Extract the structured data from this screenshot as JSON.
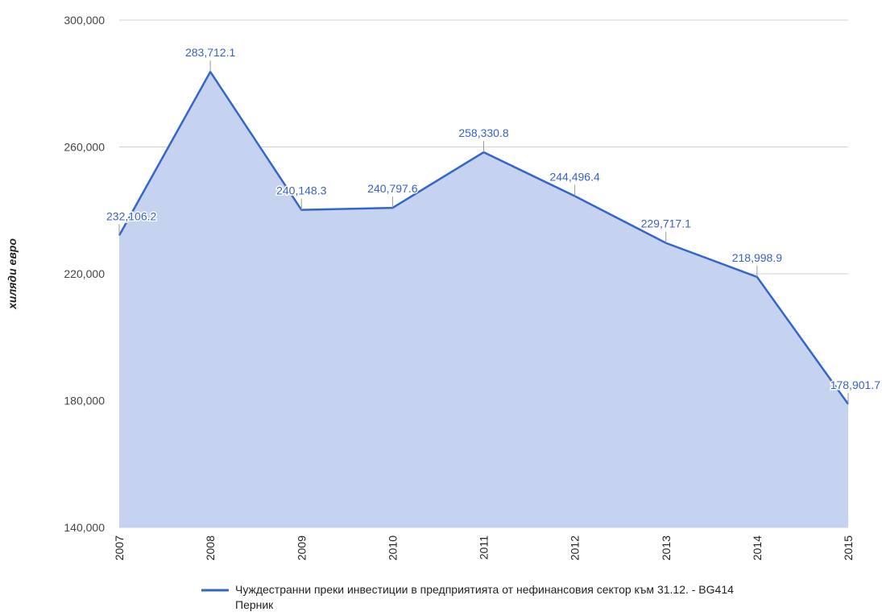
{
  "chart_data": {
    "type": "area",
    "y_axis_label": "хиляди евро",
    "categories": [
      "2007",
      "2008",
      "2009",
      "2010",
      "2011",
      "2012",
      "2013",
      "2014",
      "2015"
    ],
    "series": [
      {
        "name": "Чуждестранни преки инвестиции в предприятията от нефинансовия сектор към 31.12. - BG414 Перник",
        "color": "#3366cc",
        "fill": "#c3d1ef",
        "values": [
          232106.2,
          283712.1,
          240148.3,
          240797.6,
          258330.8,
          244496.4,
          229717.1,
          218998.9,
          178901.7
        ],
        "value_labels": [
          "232,106.2",
          "283,712.1",
          "240,148.3",
          "240,797.6",
          "258,330.8",
          "244,496.4",
          "229,717.1",
          "218,998.9",
          "178,901.7"
        ]
      }
    ],
    "ylim": [
      140000,
      300000
    ],
    "yticks": [
      {
        "value": 140000,
        "label": "140,000"
      },
      {
        "value": 180000,
        "label": "180,000"
      },
      {
        "value": 220000,
        "label": "220,000"
      },
      {
        "value": 260000,
        "label": "260,000"
      },
      {
        "value": 300000,
        "label": "300,000"
      }
    ],
    "grid": true
  }
}
